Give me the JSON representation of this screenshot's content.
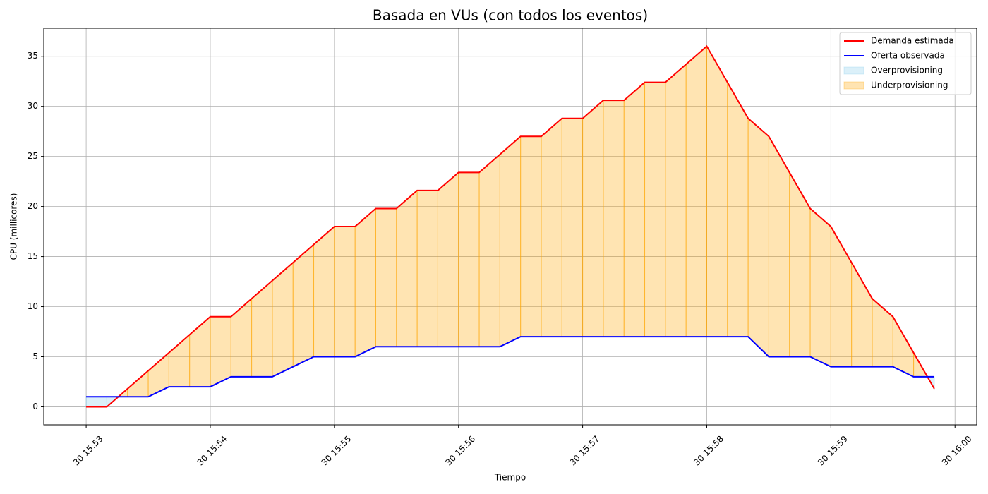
{
  "chart_data": {
    "type": "line",
    "title": "Basada en VUs (con todos los eventos)",
    "x_label": "Tiempo",
    "y_label": "CPU (millicores)",
    "x": [
      "30 15:53:00",
      "30 15:53:10",
      "30 15:53:20",
      "30 15:53:30",
      "30 15:53:40",
      "30 15:53:50",
      "30 15:54:00",
      "30 15:54:10",
      "30 15:54:20",
      "30 15:54:30",
      "30 15:54:40",
      "30 15:54:50",
      "30 15:55:00",
      "30 15:55:10",
      "30 15:55:20",
      "30 15:55:30",
      "30 15:55:40",
      "30 15:55:50",
      "30 15:56:00",
      "30 15:56:10",
      "30 15:56:20",
      "30 15:56:30",
      "30 15:56:40",
      "30 15:56:50",
      "30 15:57:00",
      "30 15:57:10",
      "30 15:57:20",
      "30 15:57:30",
      "30 15:57:40",
      "30 15:57:50",
      "30 15:58:00",
      "30 15:58:10",
      "30 15:58:20",
      "30 15:58:30",
      "30 15:58:40",
      "30 15:58:50",
      "30 15:59:00",
      "30 15:59:10",
      "30 15:59:20",
      "30 15:59:30",
      "30 15:59:40",
      "30 15:59:50"
    ],
    "series": [
      {
        "name": "Demanda estimada",
        "color": "#ff0000",
        "values": [
          0,
          0,
          1.8,
          3.6,
          5.4,
          7.2,
          9,
          9,
          10.8,
          12.6,
          14.4,
          16.2,
          18,
          18,
          19.8,
          19.8,
          21.6,
          21.6,
          23.4,
          23.4,
          25.2,
          27,
          27,
          28.8,
          28.8,
          30.6,
          30.6,
          32.4,
          32.4,
          34.2,
          36,
          32.4,
          28.8,
          27,
          23.4,
          19.8,
          18,
          14.4,
          10.8,
          9,
          5.4,
          1.8
        ]
      },
      {
        "name": "Oferta observada",
        "color": "#0000ff",
        "values": [
          1,
          1,
          1,
          1,
          2,
          2,
          2,
          3,
          3,
          3,
          4,
          5,
          5,
          5,
          6,
          6,
          6,
          6,
          6,
          6,
          6,
          7,
          7,
          7,
          7,
          7,
          7,
          7,
          7,
          7,
          7,
          7,
          7,
          5,
          5,
          5,
          4,
          4,
          4,
          4,
          3,
          3
        ]
      }
    ],
    "fills": [
      {
        "name": "Overprovisioning",
        "color": "#87ceeb",
        "alpha": 0.3
      },
      {
        "name": "Underprovisioning",
        "color": "#ffa500",
        "alpha": 0.3
      }
    ],
    "xlim": [
      "30 15:52:39.5",
      "30 16:00:10.5"
    ],
    "xticks": [
      {
        "value": "30 15:53:00",
        "label": "30 15:53"
      },
      {
        "value": "30 15:54:00",
        "label": "30 15:54"
      },
      {
        "value": "30 15:55:00",
        "label": "30 15:55"
      },
      {
        "value": "30 15:56:00",
        "label": "30 15:56"
      },
      {
        "value": "30 15:57:00",
        "label": "30 15:57"
      },
      {
        "value": "30 15:58:00",
        "label": "30 15:58"
      },
      {
        "value": "30 15:59:00",
        "label": "30 15:59"
      },
      {
        "value": "30 16:00:00",
        "label": "30 16:00"
      }
    ],
    "ylim": [
      -1.8,
      37.8
    ],
    "yticks": [
      0,
      5,
      10,
      15,
      20,
      25,
      30,
      35
    ],
    "grid": true,
    "legend": "upper right"
  }
}
